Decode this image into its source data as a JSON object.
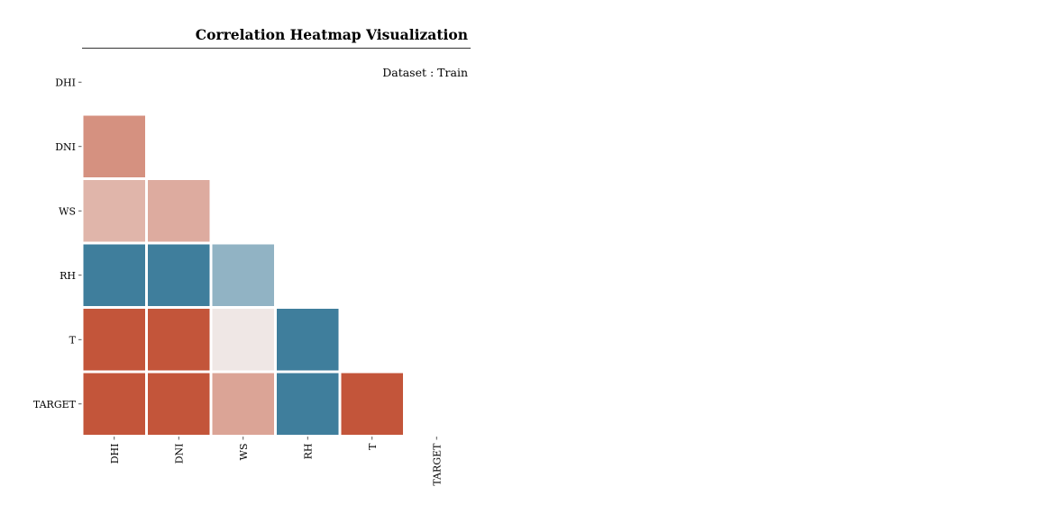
{
  "chart_data": {
    "type": "heatmap",
    "title": "Correlation Heatmap Visualization",
    "subtitle": "Dataset : Train",
    "row_labels": [
      "DHI",
      "DNI",
      "WS",
      "RH",
      "T",
      "TARGET"
    ],
    "col_labels": [
      "DHI",
      "DNI",
      "WS",
      "RH",
      "T",
      "TARGET"
    ],
    "mask": "upper-triangle-including-diagonal",
    "grid": false,
    "legend": "none",
    "colors": {
      "negative": "#3f7e9c",
      "neutral": "#f2f2f2",
      "positive": "#c3553a",
      "gap": "#ffffff",
      "text": "#000000",
      "rule": "#333333"
    },
    "cells": [
      {
        "row": "DNI",
        "col": "DHI",
        "value": 0.62
      },
      {
        "row": "WS",
        "col": "DHI",
        "value": 0.39
      },
      {
        "row": "WS",
        "col": "DNI",
        "value": 0.45
      },
      {
        "row": "RH",
        "col": "DHI",
        "value": -1.0
      },
      {
        "row": "RH",
        "col": "DNI",
        "value": -1.0
      },
      {
        "row": "RH",
        "col": "WS",
        "value": -0.54
      },
      {
        "row": "T",
        "col": "DHI",
        "value": 1.0
      },
      {
        "row": "T",
        "col": "DNI",
        "value": 1.0
      },
      {
        "row": "T",
        "col": "WS",
        "value": 0.07
      },
      {
        "row": "T",
        "col": "RH",
        "value": -1.0
      },
      {
        "row": "TARGET",
        "col": "DHI",
        "value": 1.0
      },
      {
        "row": "TARGET",
        "col": "DNI",
        "value": 1.0
      },
      {
        "row": "TARGET",
        "col": "WS",
        "value": 0.5
      },
      {
        "row": "TARGET",
        "col": "RH",
        "value": -1.0
      },
      {
        "row": "TARGET",
        "col": "T",
        "value": 1.0
      }
    ]
  }
}
